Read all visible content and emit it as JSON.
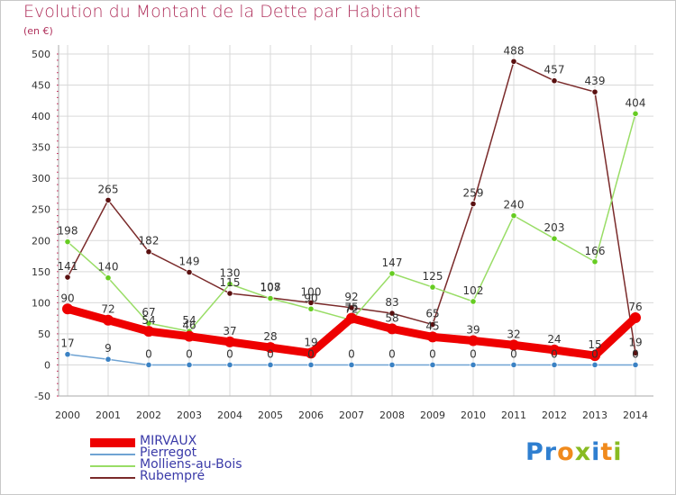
{
  "title": "Evolution du Montant de la Dette par Habitant",
  "subtitle": "(en €)",
  "logo": {
    "text": "Proxiti",
    "letters": [
      {
        "ch": "P",
        "color": "#2f7fd0"
      },
      {
        "ch": "r",
        "color": "#2f7fd0"
      },
      {
        "ch": "o",
        "color": "#f08a1c"
      },
      {
        "ch": "x",
        "color": "#88bb22"
      },
      {
        "ch": "i",
        "color": "#2f7fd0"
      },
      {
        "ch": "t",
        "color": "#f08a1c"
      },
      {
        "ch": "i",
        "color": "#88bb22"
      }
    ]
  },
  "chart_data": {
    "type": "line",
    "title": "Evolution du Montant de la Dette par Habitant",
    "subtitle": "(en €)",
    "x": [
      "2000",
      "2001",
      "2002",
      "2003",
      "2004",
      "2005",
      "2006",
      "2007",
      "2008",
      "2009",
      "2010",
      "2011",
      "2012",
      "2013",
      "2014"
    ],
    "ylim": [
      -50,
      500
    ],
    "yticks": [
      -50,
      0,
      50,
      100,
      150,
      200,
      250,
      300,
      350,
      400,
      450,
      500
    ],
    "grid": true,
    "legend_position": "bottom-left",
    "series": [
      {
        "name": "MIRVAUX",
        "color": "#ee0000",
        "width": 9,
        "values": [
          90,
          72,
          54,
          46,
          37,
          28,
          19,
          75,
          58,
          45,
          39,
          32,
          24,
          15,
          76
        ],
        "labels": [
          "90",
          "72",
          "54",
          "46",
          "37",
          "28",
          "19",
          "75",
          "58",
          "45",
          "39",
          "32",
          "24",
          "15",
          "76"
        ]
      },
      {
        "name": "Pierregot",
        "color": "#6fa3d3",
        "width": 1.5,
        "values": [
          17,
          9,
          0,
          0,
          0,
          0,
          0,
          0,
          0,
          0,
          0,
          0,
          0,
          0,
          0
        ],
        "labels": [
          "17",
          "9",
          "0",
          "0",
          "0",
          "0",
          "0",
          "0",
          "0",
          "0",
          "0",
          "0",
          "0",
          "0",
          "0"
        ]
      },
      {
        "name": "Molliens-au-Bois",
        "color": "#99dd66",
        "width": 1.5,
        "values": [
          198,
          140,
          67,
          54,
          130,
          107,
          90,
          72,
          147,
          125,
          102,
          240,
          203,
          166,
          404
        ],
        "labels": [
          "198",
          "140",
          "67",
          "54",
          "130",
          "107",
          "90",
          "72",
          "147",
          "125",
          "102",
          "240",
          "203",
          "166",
          "404"
        ]
      },
      {
        "name": "Rubempré",
        "color": "#7a2a2a",
        "width": 1.5,
        "values": [
          141,
          265,
          182,
          149,
          115,
          108,
          100,
          92,
          83,
          65,
          259,
          488,
          457,
          439,
          19
        ],
        "labels": [
          "141",
          "265",
          "182",
          "149",
          "115",
          "108",
          "100",
          "92",
          "83",
          "65",
          "259",
          "488",
          "457",
          "439",
          "19"
        ]
      }
    ],
    "point_colors": {
      "MIRVAUX": "#ee0000",
      "Pierregot": "#3b82c4",
      "Molliens-au-Bois": "#66cc22",
      "Rubempré": "#5a1010"
    }
  }
}
